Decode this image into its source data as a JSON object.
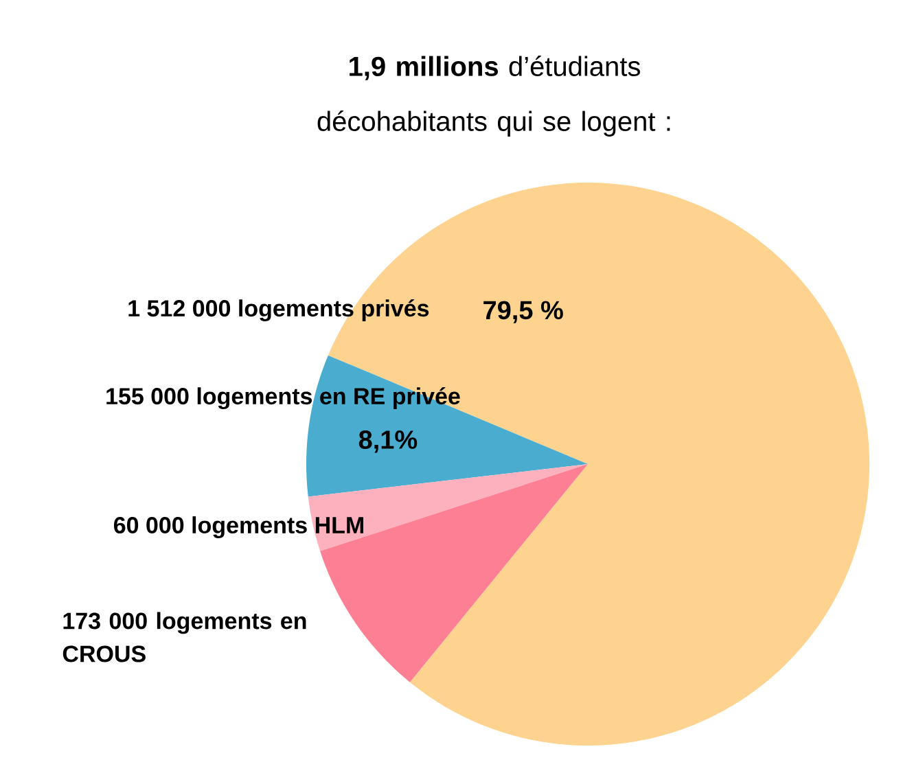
{
  "chart_data": {
    "type": "pie",
    "title": "**1,9 millions** d’étudiants décohabitants qui se logent :",
    "categories": [
      "1 512 000 logements privés",
      "155 000 logements en RE privée",
      "60 000 logements HLM",
      "173 000 logements en CROUS"
    ],
    "values": [
      1512000,
      155000,
      60000,
      173000
    ],
    "colors": [
      "#fed38f",
      "#4aaccf",
      "#fdb0bd",
      "#fd7f93"
    ],
    "annotations": [
      "79,5 %",
      "8,1%"
    ]
  }
}
